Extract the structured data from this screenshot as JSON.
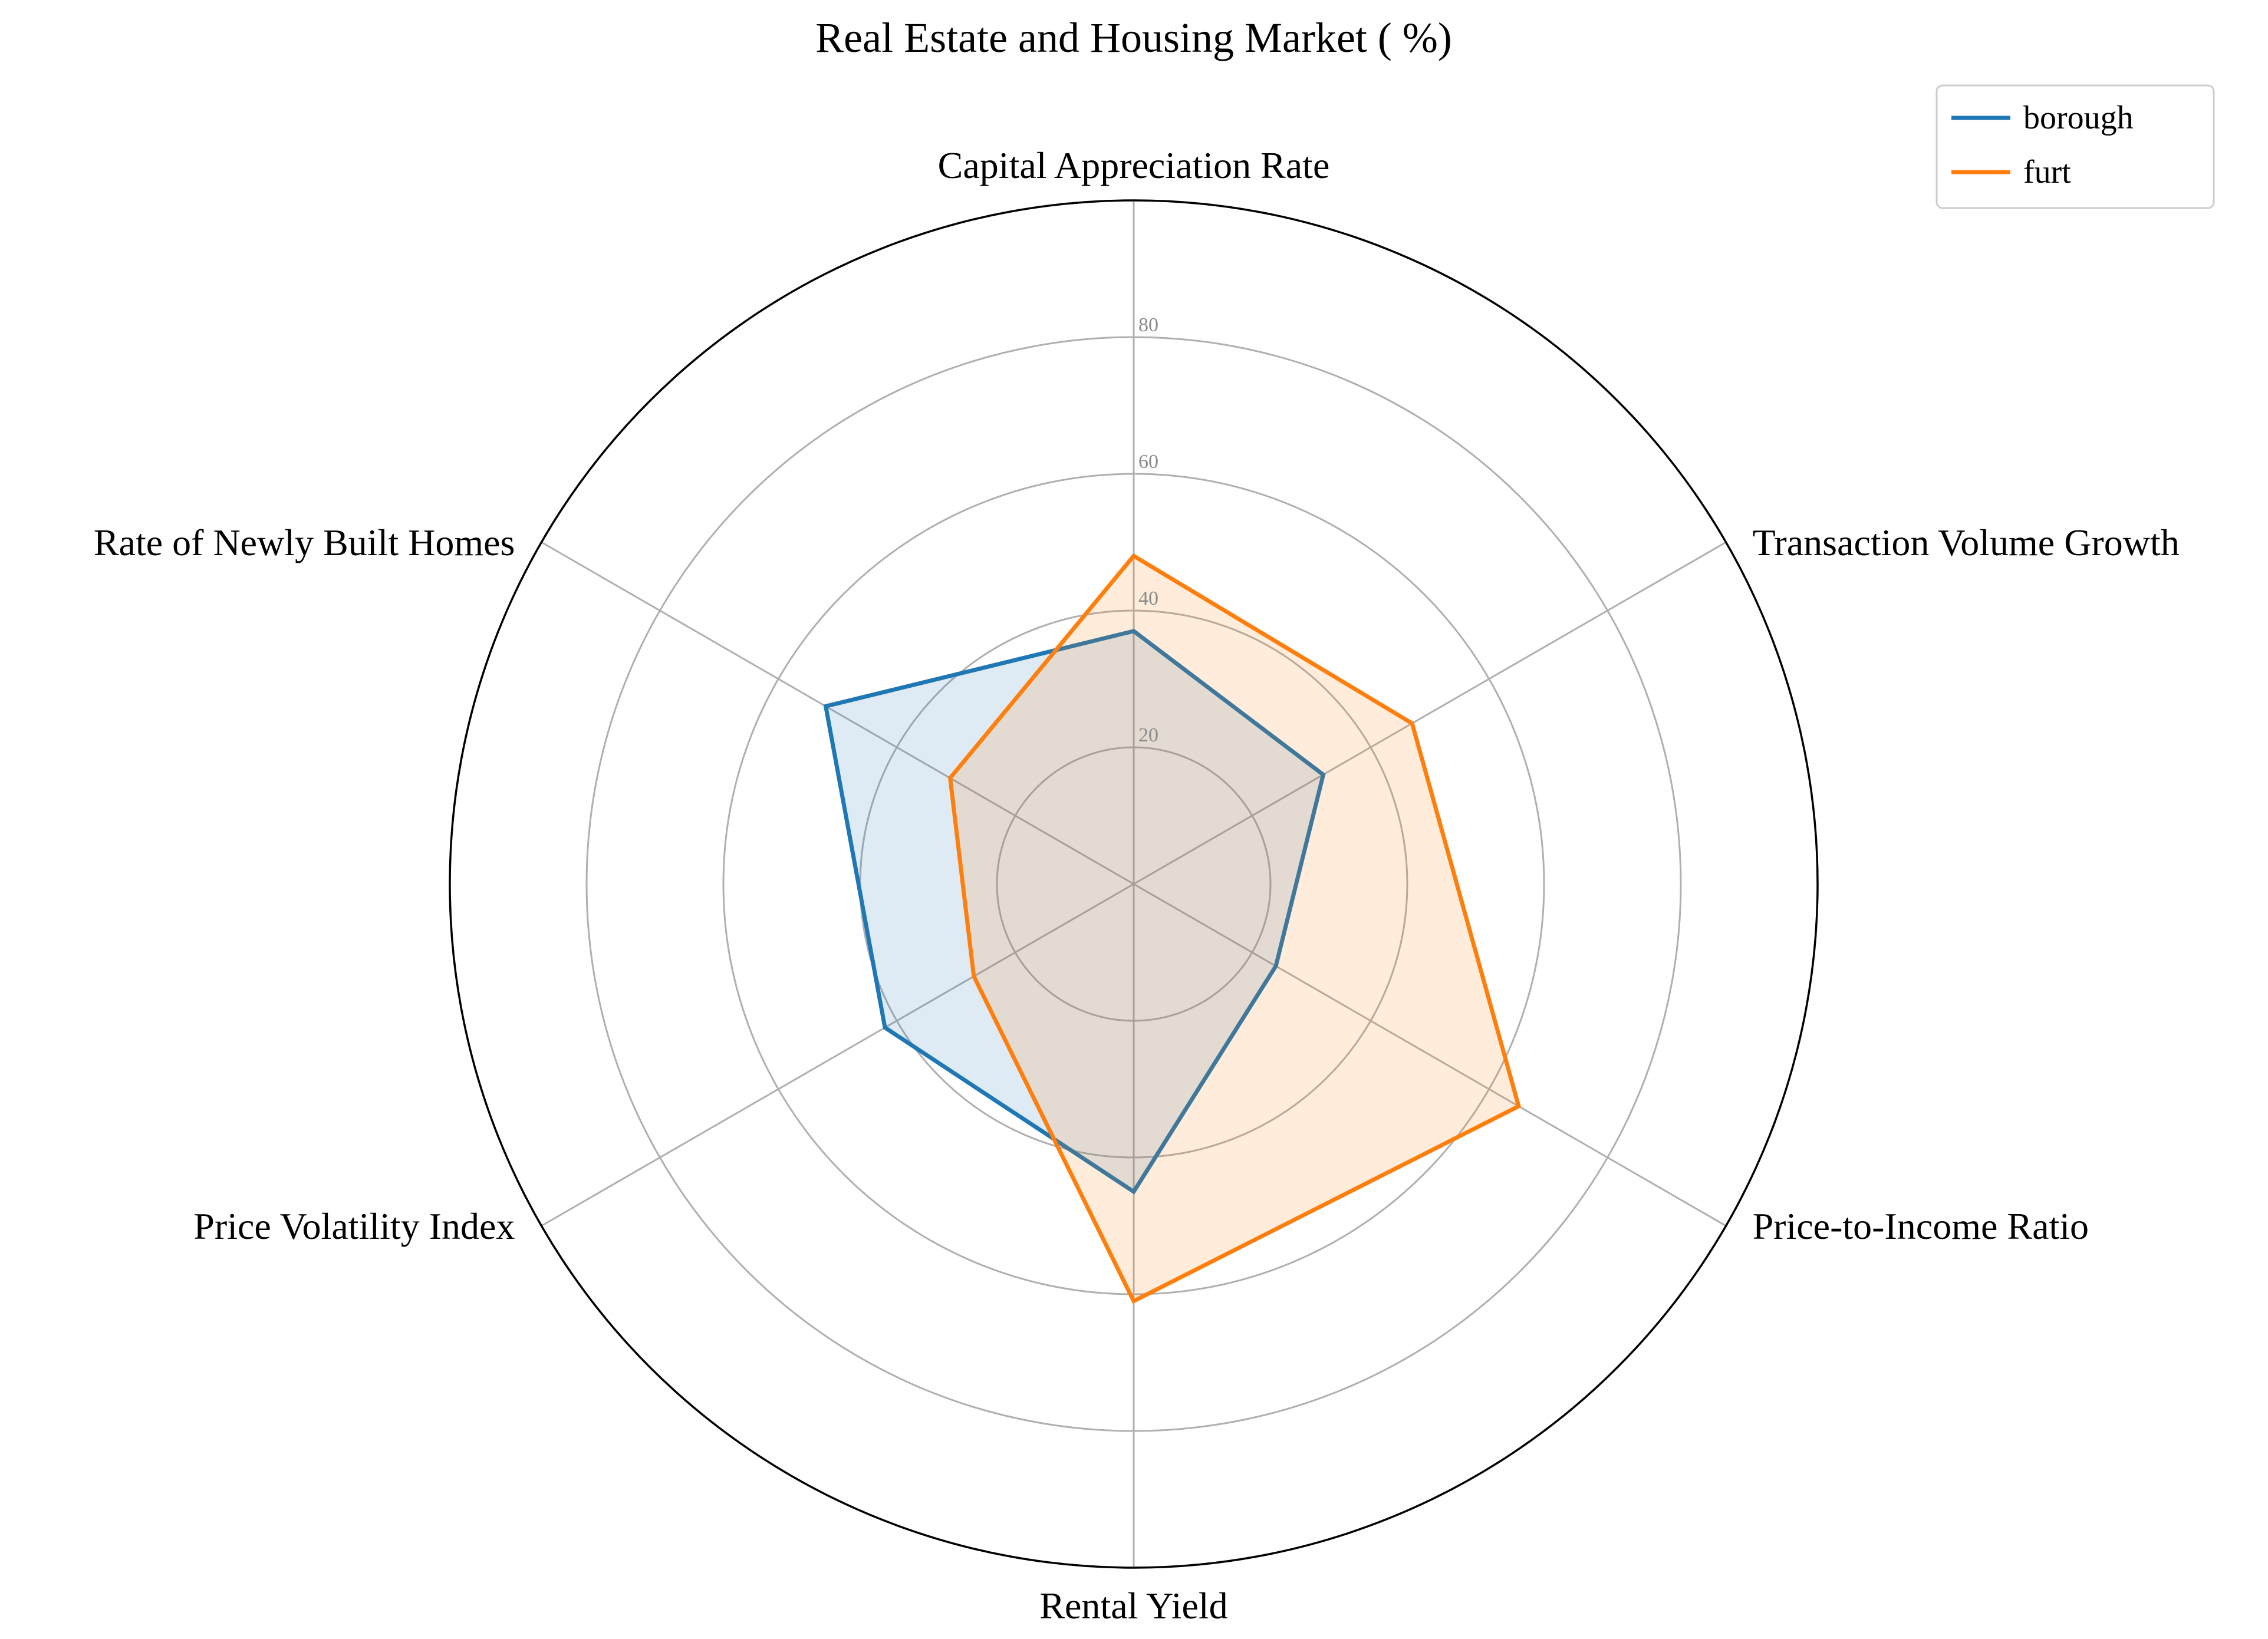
{
  "chart_data": {
    "type": "radar",
    "title": "Real Estate and Housing Market ( %)",
    "axes": [
      "Capital Appreciation Rate",
      "Transaction Volume Growth",
      "Price-to-Income Ratio",
      "Rental Yield",
      "Price Volatility Index",
      "Rate of Newly Built Homes"
    ],
    "rlim": [
      0,
      100
    ],
    "r_ticks": [
      20,
      40,
      60,
      80
    ],
    "r_tick_labels": [
      "20",
      "40",
      "60",
      "80"
    ],
    "grid": true,
    "legend_position": "top-right",
    "series": [
      {
        "name": "borough",
        "color": "#1f77b4",
        "values": [
          37,
          32,
          24,
          45,
          42,
          52
        ]
      },
      {
        "name": "furt",
        "color": "#ff7f0e",
        "values": [
          48,
          47,
          65,
          61,
          27,
          31
        ]
      }
    ]
  }
}
